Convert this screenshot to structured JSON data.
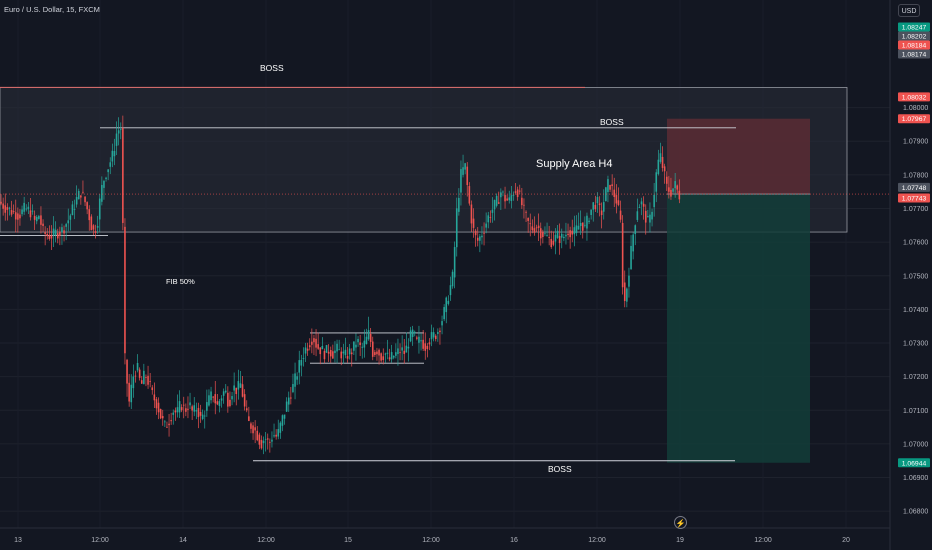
{
  "header": {
    "symbol": "Euro / U.S. Dollar, 15, FXCM",
    "currency": "USD"
  },
  "colors": {
    "bg": "#131722",
    "up": "#26a69a",
    "down": "#ef5350",
    "zone_fill": "#2a2e39",
    "target": "#133d38",
    "stop": "#5b2b34",
    "badge_price": "#ef5350",
    "badge_gray": "#4c525e",
    "badge_green": "#089981"
  },
  "chart_data": {
    "type": "candlestick",
    "symbol": "EURUSD",
    "timeframe": "15",
    "ylim": [
      1.0675,
      1.0832
    ],
    "y_ticks": [
      "1.08000",
      "1.07900",
      "1.07800",
      "1.07700",
      "1.07600",
      "1.07500",
      "1.07400",
      "1.07300",
      "1.07200",
      "1.07100",
      "1.07000",
      "1.06900",
      "1.06800"
    ],
    "x_ticks": [
      "13",
      "12:00",
      "14",
      "12:00",
      "15",
      "12:00",
      "16",
      "12:00",
      "19",
      "12:00",
      "20"
    ],
    "price_labels": [
      {
        "text": "1.08247",
        "color": "green"
      },
      {
        "text": "1.08202",
        "color": "gray"
      },
      {
        "text": "1.08184",
        "color": "red"
      },
      {
        "text": "1.08174",
        "color": "gray"
      },
      {
        "text": "1.08032",
        "color": "red"
      },
      {
        "text": "1.07967",
        "color": "red"
      },
      {
        "text": "1.07748",
        "color": "gray"
      },
      {
        "text": "1.07743",
        "color": "red"
      },
      {
        "text": "1.06944",
        "color": "green"
      }
    ],
    "current_price": 1.07743,
    "supply_zone": [
      1.0763,
      1.0806
    ],
    "position": {
      "entry": 1.07743,
      "stop": 1.07967,
      "target": 1.06944
    },
    "levels": [
      {
        "name": "boss-top-line",
        "price": 1.0806
      },
      {
        "name": "boss-line",
        "price": 1.0794
      },
      {
        "name": "boss-bottom-line",
        "price": 1.0695
      },
      {
        "name": "range-top",
        "price": 1.0733
      },
      {
        "name": "range-bottom",
        "price": 1.0724
      },
      {
        "name": "left-support",
        "price": 1.0762
      }
    ],
    "annotations": [
      "BOSS",
      "BOSS",
      "Supply Area H4",
      "FIB 50%",
      "BOSS"
    ],
    "path": [
      [
        0,
        1.0772
      ],
      [
        8,
        1.077
      ],
      [
        14,
        1.0769
      ],
      [
        20,
        1.0768
      ],
      [
        26,
        1.077
      ],
      [
        32,
        1.0769
      ],
      [
        36,
        1.0766
      ],
      [
        40,
        1.0768
      ],
      [
        44,
        1.0763
      ],
      [
        48,
        1.0762
      ],
      [
        54,
        1.0762
      ],
      [
        58,
        1.0763
      ],
      [
        62,
        1.0763
      ],
      [
        66,
        1.0765
      ],
      [
        70,
        1.0767
      ],
      [
        74,
        1.077
      ],
      [
        78,
        1.0773
      ],
      [
        82,
        1.0775
      ],
      [
        86,
        1.0772
      ],
      [
        90,
        1.0768
      ],
      [
        94,
        1.0763
      ],
      [
        98,
        1.0765
      ],
      [
        102,
        1.0775
      ],
      [
        106,
        1.078
      ],
      [
        110,
        1.0783
      ],
      [
        114,
        1.0786
      ],
      [
        118,
        1.0793
      ],
      [
        122,
        1.0794
      ],
      [
        124,
        1.0763
      ],
      [
        126,
        1.0725
      ],
      [
        130,
        1.0712
      ],
      [
        134,
        1.072
      ],
      [
        138,
        1.0723
      ],
      [
        142,
        1.0717
      ],
      [
        146,
        1.0721
      ],
      [
        150,
        1.0718
      ],
      [
        154,
        1.0714
      ],
      [
        158,
        1.0712
      ],
      [
        162,
        1.0708
      ],
      [
        166,
        1.0705
      ],
      [
        170,
        1.0707
      ],
      [
        174,
        1.071
      ],
      [
        178,
        1.0709
      ],
      [
        182,
        1.0712
      ],
      [
        186,
        1.071
      ],
      [
        190,
        1.0712
      ],
      [
        194,
        1.0709
      ],
      [
        198,
        1.0711
      ],
      [
        202,
        1.0707
      ],
      [
        206,
        1.071
      ],
      [
        210,
        1.0713
      ],
      [
        214,
        1.0715
      ],
      [
        218,
        1.0711
      ],
      [
        222,
        1.0714
      ],
      [
        226,
        1.0716
      ],
      [
        230,
        1.0712
      ],
      [
        234,
        1.0717
      ],
      [
        238,
        1.0716
      ],
      [
        242,
        1.0718
      ],
      [
        246,
        1.071
      ],
      [
        250,
        1.0706
      ],
      [
        254,
        1.0705
      ],
      [
        258,
        1.0703
      ],
      [
        262,
        1.07
      ],
      [
        266,
        1.0702
      ],
      [
        270,
        1.07
      ],
      [
        274,
        1.0703
      ],
      [
        278,
        1.0702
      ],
      [
        282,
        1.0706
      ],
      [
        286,
        1.071
      ],
      [
        290,
        1.0714
      ],
      [
        294,
        1.0717
      ],
      [
        298,
        1.0721
      ],
      [
        302,
        1.0725
      ],
      [
        306,
        1.0728
      ],
      [
        310,
        1.073
      ],
      [
        314,
        1.0732
      ],
      [
        318,
        1.0729
      ],
      [
        322,
        1.0728
      ],
      [
        326,
        1.0727
      ],
      [
        330,
        1.0728
      ],
      [
        334,
        1.0727
      ],
      [
        338,
        1.0728
      ],
      [
        342,
        1.0727
      ],
      [
        346,
        1.0726
      ],
      [
        350,
        1.0727
      ],
      [
        354,
        1.0728
      ],
      [
        358,
        1.0731
      ],
      [
        362,
        1.0728
      ],
      [
        366,
        1.073
      ],
      [
        370,
        1.0733
      ],
      [
        374,
        1.0727
      ],
      [
        378,
        1.0728
      ],
      [
        382,
        1.0726
      ],
      [
        386,
        1.0727
      ],
      [
        390,
        1.0725
      ],
      [
        394,
        1.0726
      ],
      [
        398,
        1.0727
      ],
      [
        402,
        1.0728
      ],
      [
        406,
        1.0727
      ],
      [
        410,
        1.0731
      ],
      [
        414,
        1.0733
      ],
      [
        418,
        1.073
      ],
      [
        422,
        1.0731
      ],
      [
        426,
        1.0729
      ],
      [
        430,
        1.0731
      ],
      [
        434,
        1.0732
      ],
      [
        438,
        1.0733
      ],
      [
        442,
        1.0736
      ],
      [
        446,
        1.074
      ],
      [
        450,
        1.0745
      ],
      [
        454,
        1.075
      ],
      [
        458,
        1.077
      ],
      [
        462,
        1.078
      ],
      [
        466,
        1.0783
      ],
      [
        470,
        1.0772
      ],
      [
        474,
        1.0764
      ],
      [
        478,
        1.076
      ],
      [
        482,
        1.0762
      ],
      [
        486,
        1.0765
      ],
      [
        490,
        1.0768
      ],
      [
        494,
        1.077
      ],
      [
        498,
        1.0772
      ],
      [
        502,
        1.0775
      ],
      [
        506,
        1.0773
      ],
      [
        510,
        1.0772
      ],
      [
        514,
        1.0775
      ],
      [
        518,
        1.0776
      ],
      [
        522,
        1.0772
      ],
      [
        526,
        1.0768
      ],
      [
        530,
        1.0765
      ],
      [
        534,
        1.0764
      ],
      [
        538,
        1.0765
      ],
      [
        542,
        1.0763
      ],
      [
        546,
        1.0762
      ],
      [
        550,
        1.0761
      ],
      [
        554,
        1.076
      ],
      [
        558,
        1.0762
      ],
      [
        562,
        1.0761
      ],
      [
        566,
        1.0762
      ],
      [
        570,
        1.0764
      ],
      [
        574,
        1.0762
      ],
      [
        578,
        1.0764
      ],
      [
        582,
        1.0766
      ],
      [
        586,
        1.0764
      ],
      [
        590,
        1.0768
      ],
      [
        594,
        1.0771
      ],
      [
        598,
        1.0772
      ],
      [
        602,
        1.0768
      ],
      [
        606,
        1.0774
      ],
      [
        610,
        1.0778
      ],
      [
        614,
        1.0775
      ],
      [
        618,
        1.0772
      ],
      [
        622,
        1.0765
      ],
      [
        624,
        1.0745
      ],
      [
        626,
        1.0742
      ],
      [
        630,
        1.0752
      ],
      [
        634,
        1.0762
      ],
      [
        638,
        1.077
      ],
      [
        642,
        1.0772
      ],
      [
        646,
        1.0768
      ],
      [
        650,
        1.0765
      ],
      [
        654,
        1.0772
      ],
      [
        658,
        1.0782
      ],
      [
        661,
        1.0786
      ],
      [
        664,
        1.0782
      ],
      [
        668,
        1.0776
      ],
      [
        672,
        1.0775
      ],
      [
        676,
        1.0777
      ],
      [
        680,
        1.0774
      ]
    ]
  }
}
